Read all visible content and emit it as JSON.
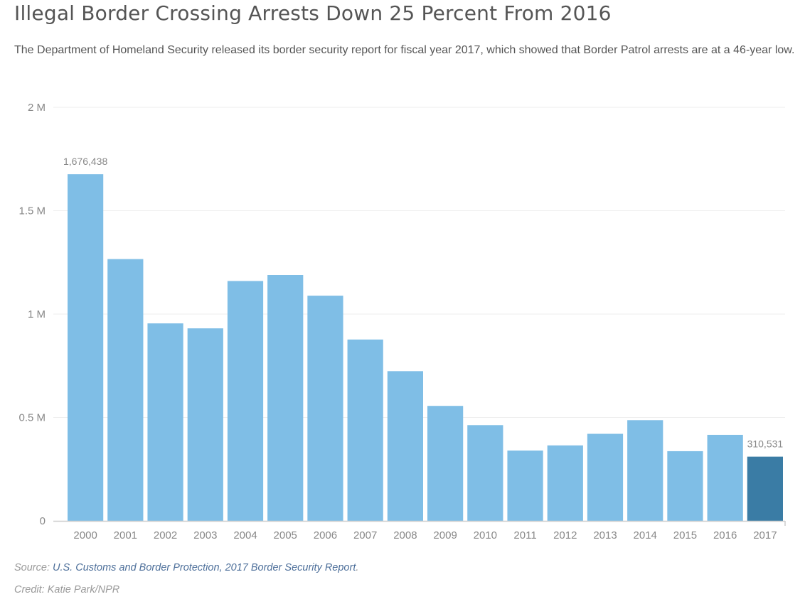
{
  "header": {
    "title": "Illegal Border Crossing Arrests Down 25 Percent From 2016",
    "subtitle": "The Department of Homeland Security released its border security report for fiscal year 2017, which showed that Border Patrol arrests are at a 46-year low."
  },
  "footer": {
    "source_prefix": "Source: ",
    "source_link": "U.S. Customs and Border Protection, 2017 Border Security Report",
    "source_suffix": ".",
    "credit": "Credit: Katie Park/NPR"
  },
  "colors": {
    "bar": "#7fbee6",
    "highlight": "#3a7ca5",
    "grid": "#eeeeee",
    "axis": "#cccccc",
    "tick_label": "#888888"
  },
  "chart_data": {
    "type": "bar",
    "categories": [
      "2000",
      "2001",
      "2002",
      "2003",
      "2004",
      "2005",
      "2006",
      "2007",
      "2008",
      "2009",
      "2010",
      "2011",
      "2012",
      "2013",
      "2014",
      "2015",
      "2016",
      "2017"
    ],
    "values": [
      1676438,
      1266000,
      955000,
      931000,
      1160000,
      1189000,
      1089000,
      877000,
      724000,
      556000,
      463000,
      340000,
      365000,
      421000,
      487000,
      337000,
      416000,
      310531
    ],
    "ylim": [
      0,
      2000000
    ],
    "yticks": [
      0,
      500000,
      1000000,
      1500000,
      2000000
    ],
    "ytick_labels": [
      "0",
      "0.5 M",
      "1 M",
      "1.5 M",
      "2 M"
    ],
    "data_labels": [
      {
        "category": "2000",
        "text": "1,676,438"
      },
      {
        "category": "2017",
        "text": "310,531"
      }
    ],
    "highlight_category": "2017",
    "grid": true,
    "legend": "none"
  }
}
